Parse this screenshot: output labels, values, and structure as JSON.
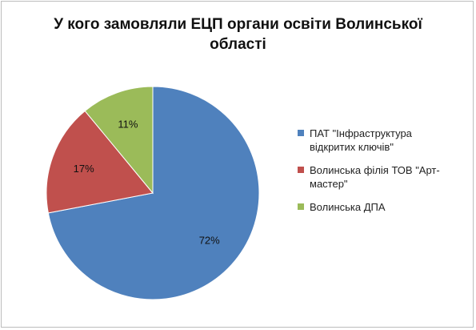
{
  "chart_data": {
    "type": "pie",
    "title": "У кого замовляли ЕЦП органи освіти Волинської області",
    "title_lines": [
      "У кого замовляли ЕЦП органи освіти Волинської",
      "області"
    ],
    "categories": [
      "ПАТ \"Інфраструктура відкритих ключів\"",
      "Волинська філія ТОВ \"Арт-мастер\"",
      "Волинська ДПА"
    ],
    "values": [
      72,
      17,
      11
    ],
    "data_labels": [
      "72%",
      "17%",
      "11%"
    ],
    "colors": [
      "#4f81bd",
      "#c0504d",
      "#9bbb59"
    ],
    "legend_placement": "right",
    "legend_lines": [
      [
        "ПАТ \"Інфраструктура",
        "відкритих ключів\""
      ],
      [
        "Волинська філія ТОВ \"Арт-",
        "мастер\""
      ],
      [
        "Волинська ДПА"
      ]
    ]
  }
}
